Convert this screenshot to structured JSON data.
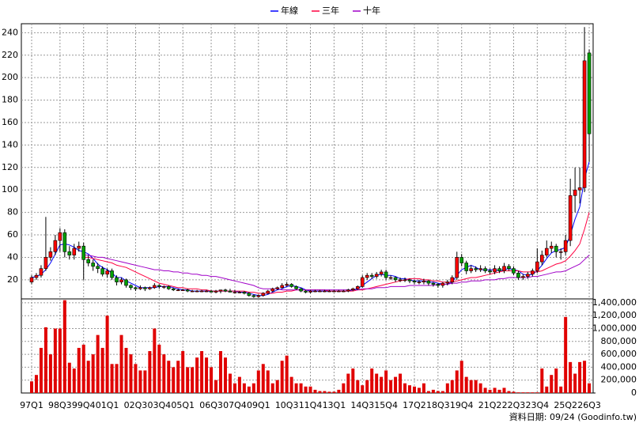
{
  "chart_data": [
    {
      "type": "candlestick",
      "legend": [
        "年線",
        "三年",
        "十年"
      ],
      "up_color": "#ff0000",
      "down_color": "#00a000",
      "grid": true,
      "ylim": [
        3,
        248
      ],
      "yticks": [
        20,
        40,
        60,
        80,
        100,
        120,
        140,
        160,
        180,
        200,
        220,
        240
      ],
      "categories": [
        "97Q1",
        null,
        null,
        null,
        null,
        null,
        "98Q3",
        null,
        null,
        null,
        null,
        "99Q4",
        null,
        null,
        null,
        null,
        "01Q1",
        null,
        null,
        null,
        null,
        null,
        "02Q3",
        null,
        null,
        null,
        null,
        "03Q4",
        null,
        null,
        null,
        null,
        "05Q1",
        null,
        null,
        null,
        null,
        null,
        "06Q3",
        null,
        null,
        null,
        null,
        "07Q4",
        null,
        null,
        null,
        null,
        "09Q1",
        null,
        null,
        null,
        null,
        null,
        "10Q3",
        null,
        null,
        null,
        null,
        "11Q4",
        null,
        null,
        null,
        null,
        "13Q1",
        null,
        null,
        null,
        null,
        null,
        "14Q3",
        null,
        null,
        null,
        null,
        "15Q4",
        null,
        null,
        null,
        null,
        null,
        "17Q2",
        null,
        null,
        null,
        null,
        "18Q3",
        null,
        null,
        null,
        null,
        "19Q4",
        null,
        null,
        null,
        null,
        null,
        "21Q2",
        null,
        null,
        null,
        null,
        "22Q3",
        null,
        null,
        null,
        null,
        "23Q4",
        null,
        null,
        null,
        null,
        null,
        "25Q2",
        null,
        null,
        null,
        null,
        "26Q3"
      ],
      "open": [
        18,
        22,
        24,
        30,
        40,
        45,
        55,
        62,
        45,
        42,
        48,
        50,
        38,
        35,
        32,
        30,
        25,
        28,
        22,
        18,
        20,
        15,
        13,
        12,
        13,
        12,
        13,
        15,
        14,
        14,
        12,
        11,
        11,
        11,
        10,
        10,
        10,
        10,
        10,
        9,
        10,
        11,
        10,
        9,
        9,
        9,
        8,
        6,
        5,
        6,
        8,
        10,
        12,
        13,
        15,
        16,
        14,
        12,
        10,
        9,
        10,
        10,
        10,
        10,
        10,
        10,
        10,
        10,
        11,
        12,
        14,
        22,
        24,
        23,
        25,
        27,
        22,
        22,
        20,
        20,
        20,
        19,
        18,
        18,
        19,
        17,
        16,
        15,
        17,
        18,
        22,
        40,
        35,
        28,
        30,
        29,
        30,
        28,
        27,
        30,
        28,
        32,
        30,
        26,
        22,
        23,
        25,
        28,
        36,
        42,
        48,
        50,
        45,
        45,
        55,
        95,
        100,
        102,
        222
      ],
      "high": [
        24,
        26,
        33,
        76,
        49,
        60,
        66,
        65,
        50,
        52,
        54,
        53,
        42,
        38,
        35,
        32,
        30,
        30,
        24,
        22,
        21,
        16,
        14,
        15,
        14,
        14,
        17,
        16,
        15,
        15,
        13,
        12,
        12,
        12,
        11,
        11,
        11,
        11,
        11,
        11,
        11,
        12,
        12,
        11,
        10,
        10,
        9,
        7,
        7,
        9,
        11,
        13,
        14,
        17,
        18,
        17,
        15,
        13,
        11,
        11,
        11,
        11,
        11,
        11,
        11,
        11,
        11,
        12,
        13,
        15,
        24,
        26,
        26,
        27,
        29,
        29,
        24,
        23,
        22,
        22,
        21,
        20,
        20,
        21,
        20,
        18,
        17,
        18,
        20,
        24,
        45,
        43,
        37,
        33,
        32,
        33,
        32,
        30,
        33,
        32,
        35,
        34,
        32,
        28,
        25,
        27,
        30,
        48,
        46,
        55,
        54,
        52,
        48,
        60,
        110,
        120,
        120,
        245,
        225
      ],
      "low": [
        16,
        20,
        22,
        28,
        37,
        42,
        45,
        40,
        38,
        38,
        45,
        20,
        32,
        28,
        26,
        23,
        22,
        20,
        15,
        16,
        13,
        11,
        10,
        11,
        10,
        11,
        12,
        12,
        12,
        11,
        10,
        10,
        10,
        9,
        9,
        9,
        9,
        9,
        9,
        8,
        8,
        9,
        9,
        8,
        8,
        7,
        5,
        4,
        4,
        5,
        7,
        9,
        11,
        12,
        14,
        13,
        11,
        9,
        8,
        8,
        9,
        9,
        9,
        9,
        9,
        9,
        9,
        9,
        10,
        11,
        13,
        20,
        21,
        21,
        23,
        20,
        20,
        18,
        18,
        18,
        17,
        16,
        16,
        16,
        15,
        14,
        13,
        13,
        15,
        16,
        20,
        32,
        25,
        26,
        27,
        27,
        26,
        25,
        25,
        26,
        26,
        28,
        24,
        20,
        20,
        21,
        23,
        26,
        33,
        40,
        44,
        40,
        38,
        42,
        50,
        80,
        88,
        98,
        125
      ],
      "close": [
        22,
        24,
        30,
        40,
        45,
        55,
        62,
        45,
        42,
        48,
        50,
        38,
        35,
        32,
        30,
        25,
        28,
        22,
        18,
        20,
        15,
        13,
        12,
        13,
        12,
        13,
        15,
        14,
        14,
        12,
        11,
        11,
        11,
        10,
        10,
        10,
        10,
        10,
        9,
        10,
        11,
        10,
        9,
        9,
        9,
        8,
        6,
        5,
        6,
        8,
        10,
        12,
        13,
        15,
        16,
        14,
        12,
        10,
        9,
        10,
        10,
        10,
        10,
        10,
        10,
        10,
        10,
        11,
        12,
        14,
        22,
        24,
        23,
        25,
        27,
        22,
        22,
        20,
        20,
        20,
        19,
        18,
        18,
        19,
        17,
        16,
        15,
        17,
        18,
        22,
        40,
        35,
        28,
        30,
        29,
        30,
        28,
        27,
        30,
        28,
        32,
        30,
        26,
        22,
        23,
        25,
        28,
        36,
        42,
        48,
        50,
        45,
        45,
        55,
        95,
        100,
        102,
        215,
        150
      ],
      "series": [
        {
          "name": "年線",
          "color": "#0000ff",
          "values": [
            22,
            23,
            25,
            29,
            35,
            43,
            51,
            52,
            51,
            49,
            46,
            45,
            43,
            39,
            34,
            31,
            29,
            26,
            22,
            22,
            19,
            17,
            15,
            13,
            13,
            13,
            13,
            14,
            14,
            14,
            13,
            12,
            11,
            11,
            10,
            10,
            10,
            10,
            10,
            10,
            10,
            10,
            10,
            10,
            9,
            9,
            8,
            7,
            6,
            6,
            7,
            9,
            11,
            12,
            14,
            15,
            14,
            13,
            11,
            10,
            10,
            10,
            10,
            10,
            10,
            10,
            10,
            10,
            11,
            12,
            15,
            18,
            21,
            24,
            25,
            24,
            24,
            23,
            21,
            21,
            20,
            19,
            19,
            19,
            18,
            18,
            17,
            16,
            16,
            18,
            24,
            29,
            31,
            33,
            31,
            29,
            29,
            29,
            29,
            28,
            29,
            30,
            29,
            28,
            25,
            24,
            25,
            28,
            33,
            39,
            44,
            46,
            47,
            49,
            60,
            74,
            85,
            110,
            125
          ]
        },
        {
          "name": "三年",
          "color": "#ff0040",
          "values": [
            null,
            null,
            null,
            null,
            null,
            null,
            null,
            null,
            null,
            null,
            null,
            40,
            40,
            39,
            38,
            37,
            36,
            35,
            33,
            32,
            31,
            29,
            27,
            25,
            23,
            21,
            19,
            17,
            16,
            15,
            14,
            13,
            13,
            12,
            12,
            12,
            11,
            11,
            10,
            10,
            10,
            10,
            10,
            10,
            10,
            10,
            9,
            9,
            8,
            8,
            8,
            8,
            9,
            9,
            10,
            10,
            11,
            11,
            11,
            11,
            11,
            11,
            11,
            10,
            10,
            10,
            10,
            10,
            10,
            11,
            11,
            12,
            13,
            14,
            15,
            16,
            17,
            18,
            19,
            20,
            21,
            21,
            21,
            20,
            20,
            19,
            19,
            18,
            18,
            18,
            19,
            20,
            21,
            22,
            22,
            23,
            24,
            25,
            26,
            27,
            28,
            28,
            28,
            28,
            27,
            27,
            27,
            27,
            28,
            30,
            32,
            34,
            35,
            37,
            41,
            46,
            52,
            65,
            80
          ]
        },
        {
          "name": "十年",
          "color": "#a000c8",
          "values": [
            null,
            null,
            null,
            null,
            null,
            null,
            null,
            null,
            null,
            null,
            null,
            42,
            42,
            41,
            40,
            40,
            39,
            38,
            37,
            36,
            35,
            34,
            33,
            32,
            31,
            30,
            29,
            29,
            28,
            28,
            27,
            27,
            26,
            26,
            25,
            25,
            24,
            24,
            23,
            23,
            22,
            21,
            20,
            19,
            18,
            17,
            16,
            15,
            13,
            12,
            12,
            12,
            12,
            11,
            11,
            11,
            11,
            11,
            11,
            11,
            11,
            11,
            11,
            11,
            11,
            11,
            11,
            11,
            11,
            11,
            12,
            12,
            12,
            13,
            13,
            13,
            14,
            14,
            14,
            14,
            15,
            15,
            15,
            15,
            15,
            15,
            16,
            16,
            16,
            17,
            17,
            18,
            18,
            19,
            19,
            19,
            20,
            20,
            20,
            21,
            21,
            22,
            22,
            22,
            22,
            22,
            23,
            23,
            24,
            25,
            26,
            27,
            27,
            28,
            30,
            32,
            34,
            38,
            42
          ]
        }
      ]
    },
    {
      "type": "bar",
      "color": "#e00000",
      "ylim": [
        0,
        1460000
      ],
      "yticks": [
        0,
        {
          "value": 200000,
          "label": "200,000"
        },
        {
          "value": 400000,
          "label": "400,000"
        },
        {
          "value": 600000,
          "label": "600,000"
        },
        {
          "value": 800000,
          "label": "800,000"
        },
        {
          "value": 1000000,
          "label": "1,000,000"
        },
        {
          "value": 1200000,
          "label": "1,200,000"
        },
        {
          "value": 1400000,
          "label": "1,400,000"
        }
      ],
      "values": [
        180000,
        280000,
        700000,
        1020000,
        600000,
        1000000,
        1000000,
        1440000,
        470000,
        380000,
        700000,
        750000,
        500000,
        600000,
        900000,
        700000,
        1200000,
        450000,
        450000,
        900000,
        700000,
        600000,
        450000,
        350000,
        350000,
        650000,
        1000000,
        750000,
        600000,
        500000,
        400000,
        500000,
        650000,
        400000,
        400000,
        550000,
        650000,
        550000,
        400000,
        200000,
        650000,
        550000,
        300000,
        150000,
        250000,
        150000,
        100000,
        150000,
        350000,
        450000,
        350000,
        150000,
        200000,
        500000,
        580000,
        250000,
        150000,
        150000,
        100000,
        100000,
        50000,
        30000,
        30000,
        20000,
        20000,
        50000,
        150000,
        300000,
        380000,
        200000,
        120000,
        200000,
        380000,
        300000,
        250000,
        350000,
        200000,
        250000,
        300000,
        150000,
        120000,
        100000,
        80000,
        150000,
        30000,
        50000,
        30000,
        30000,
        150000,
        200000,
        350000,
        500000,
        250000,
        200000,
        200000,
        150000,
        80000,
        50000,
        80000,
        50000,
        80000,
        30000,
        20000,
        10000,
        10000,
        10000,
        10000,
        10000,
        380000,
        100000,
        280000,
        380000,
        100000,
        1180000,
        480000,
        300000,
        480000,
        500000,
        150000
      ]
    }
  ],
  "footer": "資料日期: 09/24  (Goodinfo.tw)"
}
